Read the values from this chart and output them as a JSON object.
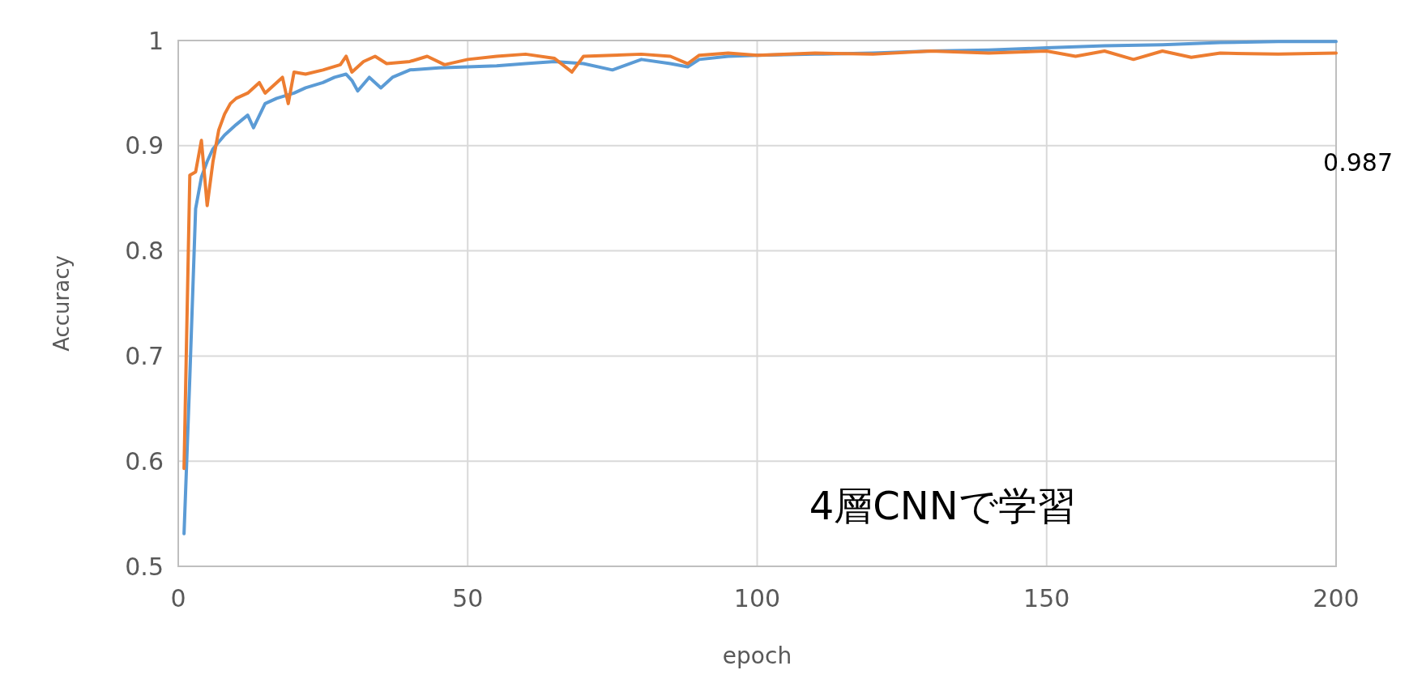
{
  "chart_data": {
    "type": "line",
    "xlabel": "epoch",
    "ylabel": "Accuracy",
    "xlim": [
      0,
      200
    ],
    "xticks": [
      0,
      50,
      100,
      150,
      200
    ],
    "ylim": [
      0.5,
      1
    ],
    "yticks": [
      0.5,
      0.6,
      0.7,
      0.8,
      0.9,
      1
    ],
    "grid": true,
    "line_style": "solid",
    "marker": "none",
    "annotations": [
      "0.987",
      "4層CNNで学習"
    ],
    "series": [
      {
        "color": "#5b9bd5",
        "x": [
          1,
          2,
          3,
          4,
          5,
          6,
          8,
          10,
          12,
          13,
          15,
          17,
          20,
          22,
          25,
          27,
          29,
          30,
          31,
          33,
          35,
          37,
          40,
          45,
          50,
          55,
          60,
          65,
          70,
          75,
          80,
          85,
          88,
          90,
          95,
          100,
          110,
          120,
          130,
          140,
          150,
          160,
          170,
          180,
          190,
          200
        ],
        "values": [
          0.531,
          0.68,
          0.84,
          0.87,
          0.885,
          0.897,
          0.91,
          0.92,
          0.929,
          0.917,
          0.94,
          0.945,
          0.95,
          0.955,
          0.96,
          0.965,
          0.968,
          0.962,
          0.952,
          0.965,
          0.955,
          0.965,
          0.972,
          0.974,
          0.975,
          0.976,
          0.978,
          0.98,
          0.978,
          0.972,
          0.982,
          0.978,
          0.975,
          0.982,
          0.985,
          0.986,
          0.987,
          0.988,
          0.99,
          0.991,
          0.993,
          0.995,
          0.996,
          0.998,
          0.999,
          0.999
        ]
      },
      {
        "color": "#ed7d31",
        "x": [
          1,
          2,
          3,
          4,
          5,
          6,
          7,
          8,
          9,
          10,
          12,
          14,
          15,
          17,
          18,
          19,
          20,
          22,
          25,
          28,
          29,
          30,
          32,
          34,
          36,
          40,
          43,
          46,
          50,
          55,
          60,
          65,
          68,
          70,
          75,
          80,
          85,
          88,
          90,
          95,
          100,
          110,
          120,
          130,
          140,
          150,
          155,
          160,
          165,
          170,
          175,
          180,
          190,
          200
        ],
        "values": [
          0.593,
          0.872,
          0.875,
          0.905,
          0.843,
          0.885,
          0.915,
          0.93,
          0.94,
          0.945,
          0.95,
          0.96,
          0.95,
          0.96,
          0.965,
          0.94,
          0.97,
          0.968,
          0.972,
          0.977,
          0.985,
          0.97,
          0.98,
          0.985,
          0.978,
          0.98,
          0.985,
          0.977,
          0.982,
          0.985,
          0.987,
          0.983,
          0.97,
          0.985,
          0.986,
          0.987,
          0.985,
          0.978,
          0.986,
          0.988,
          0.986,
          0.988,
          0.987,
          0.99,
          0.988,
          0.99,
          0.985,
          0.99,
          0.982,
          0.99,
          0.984,
          0.988,
          0.987,
          0.988
        ]
      }
    ]
  }
}
